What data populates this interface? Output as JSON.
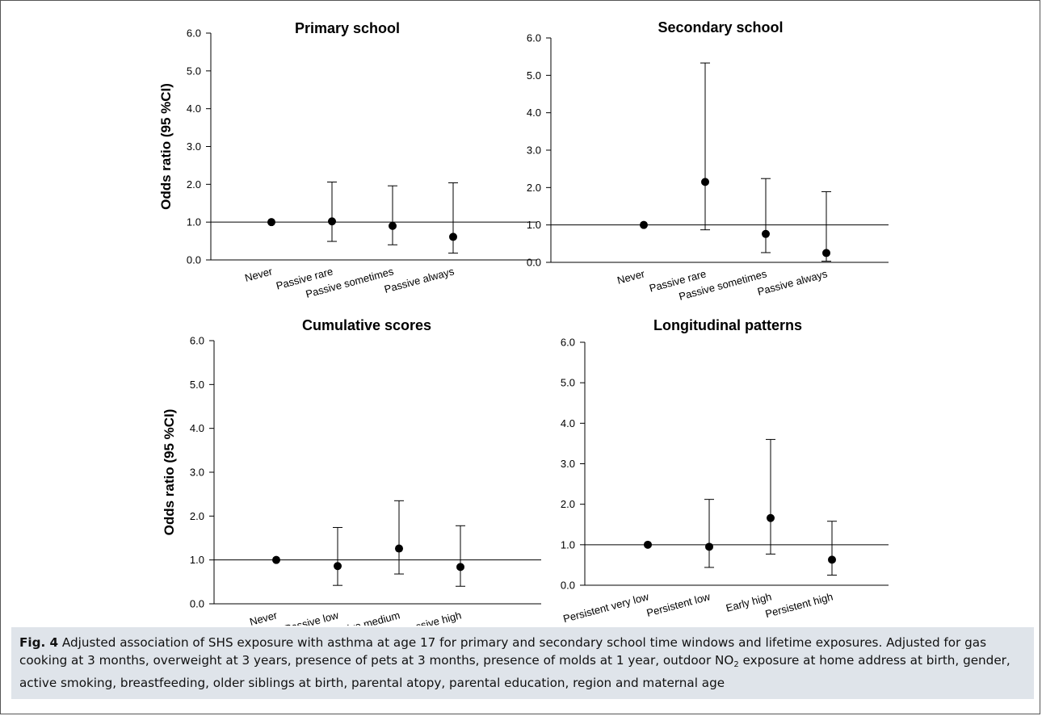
{
  "figure": {
    "caption_label": "Fig. 4",
    "caption_part1": "Adjusted association of SHS exposure with asthma at age 17 for primary and secondary school time windows and lifetime exposures. Adjusted for gas cooking at 3 months, overweight at 3 years, presence of pets at 3 months, presence of molds at 1 year, outdoor NO",
    "caption_sub": "2",
    "caption_part2": " exposure at home address at birth, gender, active smoking, breastfeeding, older siblings at birth, parental atopy, parental education, region and maternal age"
  },
  "chart_data": [
    {
      "type": "scatter",
      "title": "Primary school",
      "ylabel": "Odds ratio (95 %CI)",
      "ylim": [
        0,
        6
      ],
      "yticks": [
        "0.0",
        "1.0",
        "2.0",
        "3.0",
        "4.0",
        "5.0",
        "6.0"
      ],
      "reference_line": 1.0,
      "categories": [
        "Never",
        "Passive rare",
        "Passive sometimes",
        "Passive always"
      ],
      "values": [
        1.0,
        1.02,
        0.9,
        0.61
      ],
      "ci_low": [
        null,
        0.49,
        0.4,
        0.18
      ],
      "ci_high": [
        null,
        2.06,
        1.96,
        2.04
      ]
    },
    {
      "type": "scatter",
      "title": "Secondary school",
      "ylabel": "",
      "ylim": [
        0,
        6
      ],
      "yticks": [
        "0.0",
        "1.0",
        "2.0",
        "3.0",
        "4.0",
        "5.0",
        "6.0"
      ],
      "reference_line": 1.0,
      "categories": [
        "Never",
        "Passive rare",
        "Passive sometimes",
        "Passive always"
      ],
      "values": [
        1.0,
        2.15,
        0.76,
        0.25
      ],
      "ci_low": [
        null,
        0.87,
        0.26,
        0.03
      ],
      "ci_high": [
        null,
        5.33,
        2.24,
        1.89
      ]
    },
    {
      "type": "scatter",
      "title": "Cumulative scores",
      "ylabel": "Odds ratio (95 %CI)",
      "ylim": [
        0,
        6
      ],
      "yticks": [
        "0.0",
        "1.0",
        "2.0",
        "3.0",
        "4.0",
        "5.0",
        "6.0"
      ],
      "reference_line": 1.0,
      "categories": [
        "Never",
        "Passive low",
        "Passive medium",
        "Passive high"
      ],
      "values": [
        1.0,
        0.86,
        1.26,
        0.84
      ],
      "ci_low": [
        null,
        0.42,
        0.68,
        0.4
      ],
      "ci_high": [
        null,
        1.74,
        2.35,
        1.78
      ]
    },
    {
      "type": "scatter",
      "title": "Longitudinal patterns",
      "ylabel": "",
      "ylim": [
        0,
        6
      ],
      "yticks": [
        "0.0",
        "1.0",
        "2.0",
        "3.0",
        "4.0",
        "5.0",
        "6.0"
      ],
      "reference_line": 1.0,
      "categories": [
        "Persistent very low",
        "Persistent low",
        "Early high",
        "Persistent high"
      ],
      "values": [
        1.0,
        0.95,
        1.66,
        0.63
      ],
      "ci_low": [
        null,
        0.44,
        0.77,
        0.25
      ],
      "ci_high": [
        null,
        2.12,
        3.6,
        1.58
      ]
    }
  ]
}
